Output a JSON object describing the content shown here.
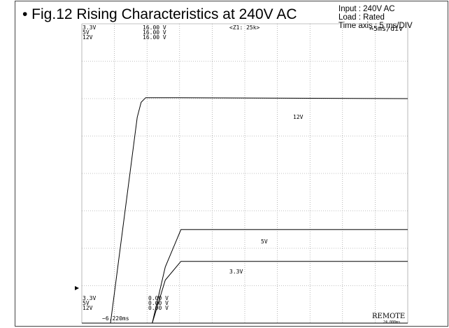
{
  "header": {
    "title": "• Fig.12 Rising Characteristics at 240V AC",
    "conditions": [
      "Input : 240V AC",
      "Load : Rated",
      "Time axis : 5 ms/DIV"
    ]
  },
  "scope": {
    "top_left": [
      "3.3V",
      "5V",
      "12V"
    ],
    "top_scales": [
      "16.00 V",
      "16.00 V",
      "16.00 V"
    ],
    "top_center": "<Z1: 25k>",
    "timebase": "⇔5ms/div",
    "bottom_left": [
      "3.3V",
      "5V",
      "12V"
    ],
    "bottom_offsets": [
      "0.00 V",
      "0.00 V",
      "0.00 V"
    ],
    "cursor_time": "−6.220ms",
    "remote": "REMOTE",
    "remote_sub": "24.000ms",
    "trace_labels": [
      "12V",
      "5V",
      "3.3V"
    ]
  },
  "chart_data": {
    "type": "line",
    "title": "Fig.12 Rising Characteristics at 240V AC",
    "xlabel": "",
    "ylabel": "",
    "xlim": [
      -10,
      40
    ],
    "ylim": [
      0,
      16
    ],
    "grid": true,
    "series": [
      {
        "name": "12V",
        "points": [
          [
            -10,
            0
          ],
          [
            -5.6,
            0
          ],
          [
            -1.5,
            11
          ],
          [
            -0.9,
            11.8
          ],
          [
            -0.2,
            12.05
          ],
          [
            2.7,
            12.05
          ],
          [
            40,
            12.0
          ]
        ]
      },
      {
        "name": "5V",
        "points": [
          [
            -10,
            0
          ],
          [
            -2.0,
            0
          ],
          [
            0.8,
            0
          ],
          [
            2.8,
            3.0
          ],
          [
            5.2,
            5.0
          ],
          [
            40,
            5.0
          ]
        ]
      },
      {
        "name": "3.3V",
        "points": [
          [
            -10,
            0
          ],
          [
            -2.0,
            0
          ],
          [
            0.8,
            0
          ],
          [
            2.8,
            2.3
          ],
          [
            5.2,
            3.3
          ],
          [
            40,
            3.3
          ]
        ]
      }
    ]
  }
}
